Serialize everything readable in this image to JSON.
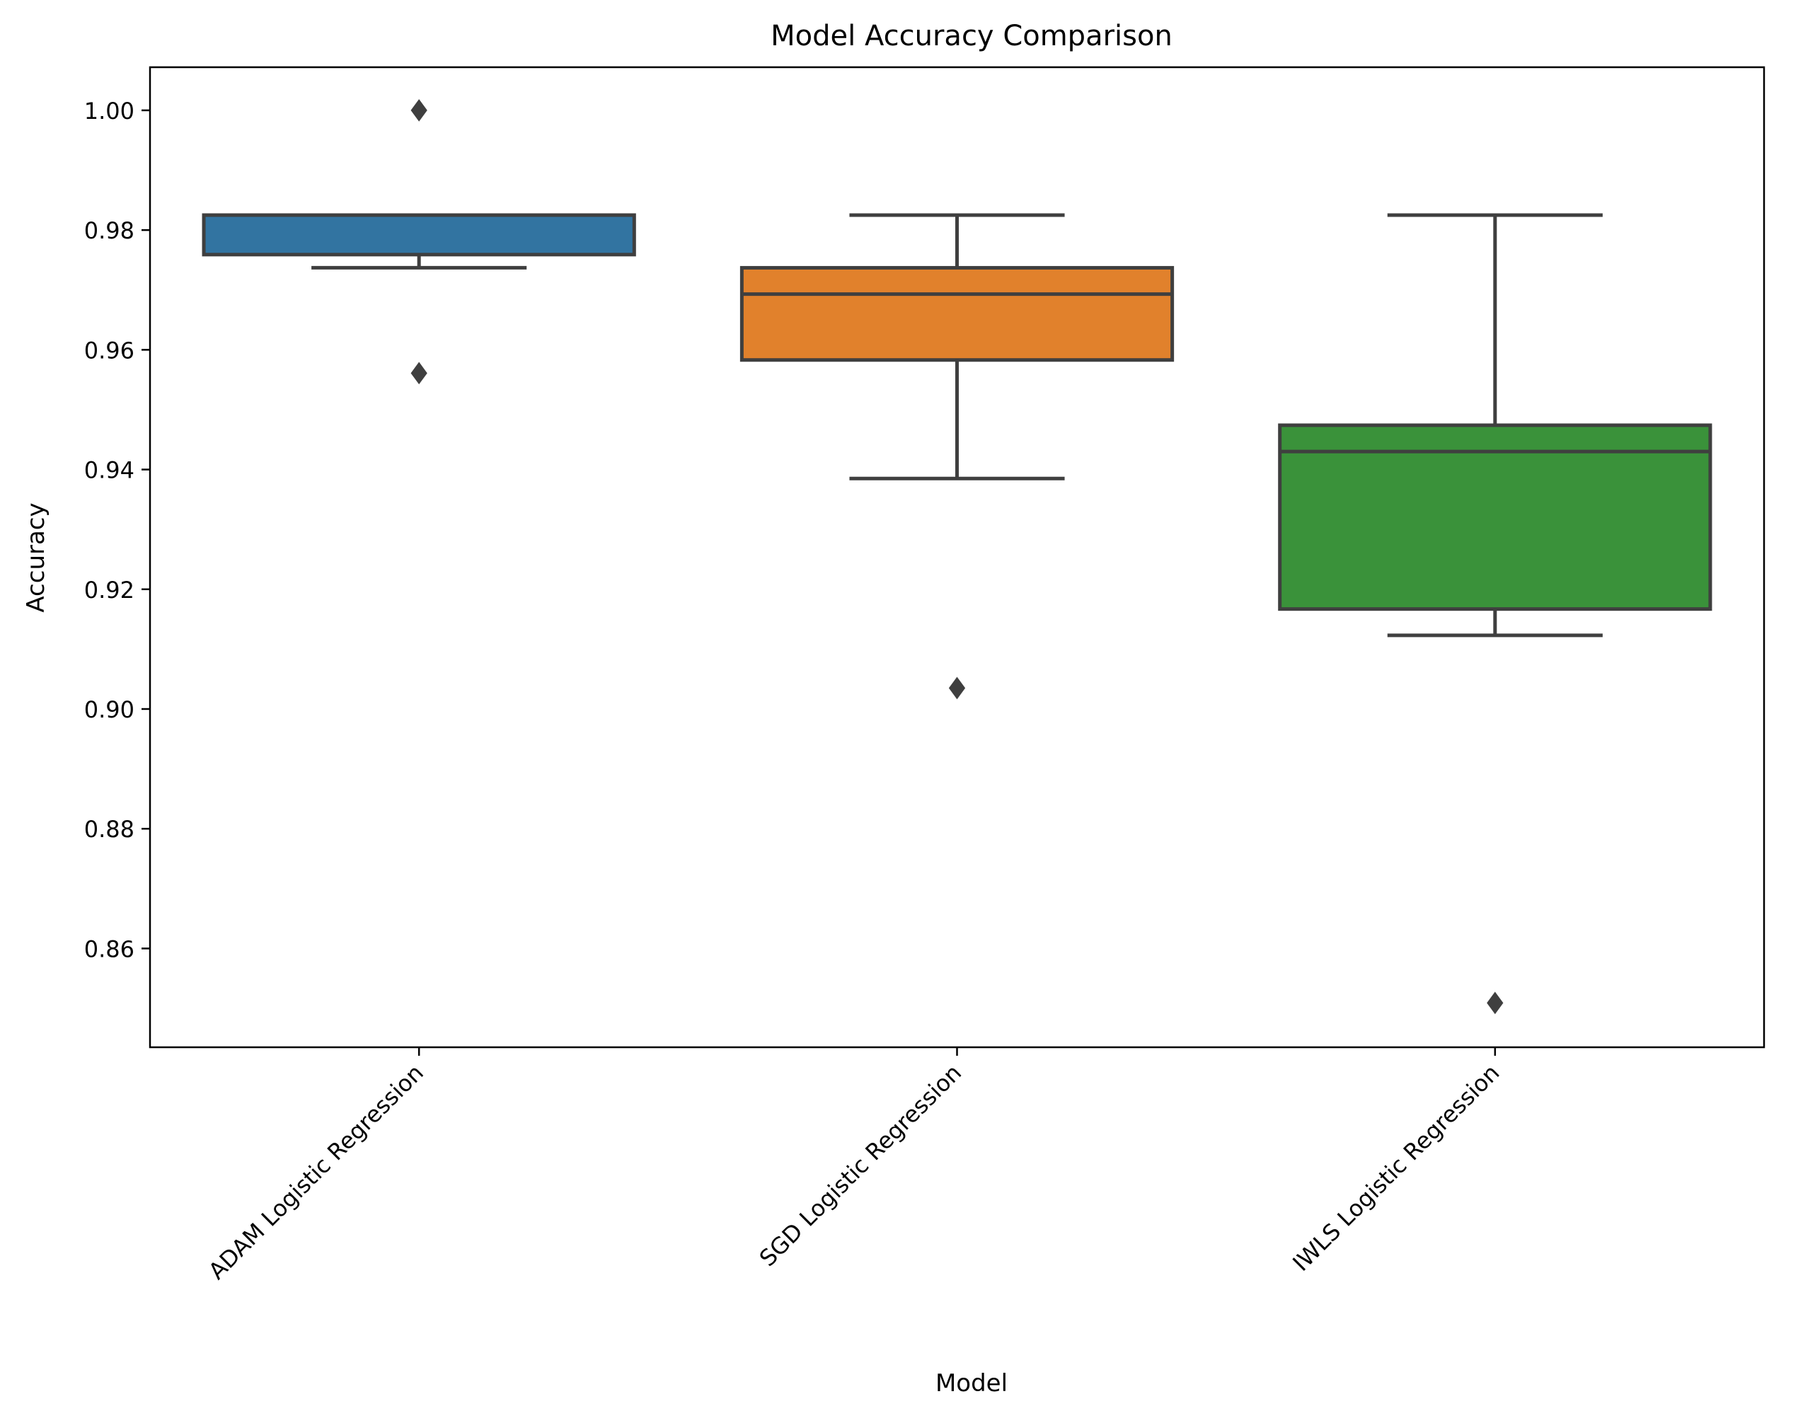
{
  "chart_data": {
    "type": "box",
    "title": "Model Accuracy Comparison",
    "xlabel": "Model",
    "ylabel": "Accuracy",
    "ylim": [
      0.8435,
      1.0072
    ],
    "yticks": [
      0.86,
      0.88,
      0.9,
      0.92,
      0.94,
      0.96,
      0.98,
      1.0
    ],
    "ytick_labels": [
      "0.86",
      "0.88",
      "0.90",
      "0.92",
      "0.94",
      "0.96",
      "0.98",
      "1.00"
    ],
    "categories": [
      "ADAM Logistic Regression",
      "SGD Logistic Regression",
      "IWLS Logistic Regression"
    ],
    "boxes": [
      {
        "name": "ADAM Logistic Regression",
        "whisker_low": 0.9737,
        "q1": 0.9759,
        "median": 0.9825,
        "q3": 0.9825,
        "whisker_high": 0.9825,
        "outliers": [
          1.0,
          0.9561
        ],
        "color": "#3274a1"
      },
      {
        "name": "SGD Logistic Regression",
        "whisker_low": 0.9385,
        "q1": 0.9583,
        "median": 0.9693,
        "q3": 0.9737,
        "whisker_high": 0.9825,
        "outliers": [
          0.9035
        ],
        "color": "#e1812c"
      },
      {
        "name": "IWLS Logistic Regression",
        "whisker_low": 0.9123,
        "q1": 0.9167,
        "median": 0.943,
        "q3": 0.9474,
        "whisker_high": 0.9825,
        "outliers": [
          0.8509
        ],
        "color": "#3a923a"
      }
    ],
    "grid": false,
    "line_color": "#3f3f3f"
  }
}
